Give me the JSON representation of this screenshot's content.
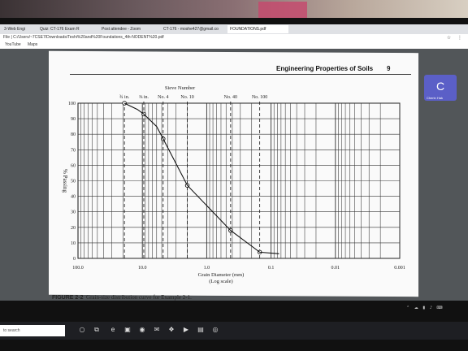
{
  "browser": {
    "tabs": [
      {
        "label": "3-Web Engi"
      },
      {
        "label": "Quiz: CT-176 Exam R"
      },
      {
        "label": "Post attendee - Zoom"
      },
      {
        "label": "CT-176 - moshe427@gmail.co"
      },
      {
        "label": "FOUNDATIONS.pdf"
      }
    ],
    "url": "File | C:/Users/~7CSE7/Downloads/Teshi%20and%20Foundations_4th-NODENT%20.pdf",
    "bookmarks": [
      "YouTube",
      "Maps"
    ]
  },
  "document": {
    "header_title": "Engineering Properties of Soils",
    "page_number": "9",
    "caption_label": "FIGURE 2-2",
    "caption_text": "Grain-size distribution curve for Example 2-1."
  },
  "meeting": {
    "avatar_letter": "C",
    "participant_name": "Cherin Hak"
  },
  "taskbar": {
    "search_placeholder": "to search"
  },
  "chart_data": {
    "type": "line",
    "title": "",
    "top_axis_title": "Sieve Number",
    "sieve_labels": [
      {
        "label": "¾ in.",
        "x": 19.0
      },
      {
        "label": "⅜ in.",
        "x": 9.5
      },
      {
        "label": "No. 4",
        "x": 4.75
      },
      {
        "label": "No. 10",
        "x": 2.0
      },
      {
        "label": "No. 40",
        "x": 0.425
      },
      {
        "label": "No. 100",
        "x": 0.15
      }
    ],
    "xlabel": "Grain Diameter (mm)",
    "xlabel_sub": "(Log scale)",
    "ylabel": "% Passing",
    "x_scale": "log",
    "x_reversed": true,
    "xlim": [
      100.0,
      0.001
    ],
    "ylim": [
      0,
      100
    ],
    "x_ticks": [
      "100.0",
      "10.0",
      "1.0",
      "0.1",
      "0.01",
      "0.001"
    ],
    "y_ticks": [
      "0",
      "10",
      "20",
      "30",
      "40",
      "50",
      "60",
      "70",
      "80",
      "90",
      "100"
    ],
    "grid": true,
    "series": [
      {
        "x": [
          19.0,
          12.0,
          9.5,
          6.0,
          4.75,
          2.0,
          0.425,
          0.15,
          0.075
        ],
        "y": [
          100,
          96,
          93,
          85,
          77,
          47,
          18,
          4,
          3
        ]
      }
    ],
    "markers_at": [
      19.0,
      9.5,
      4.75,
      2.0,
      0.425,
      0.15
    ]
  }
}
